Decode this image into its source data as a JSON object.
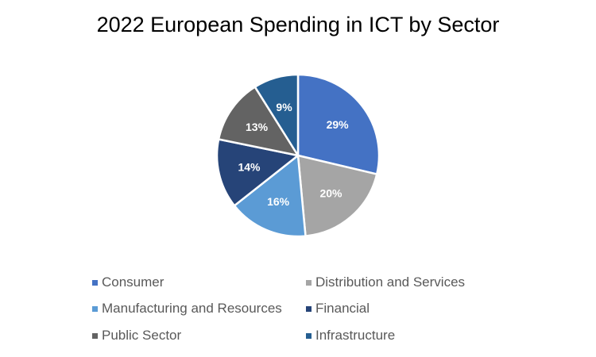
{
  "chart_data": {
    "type": "pie",
    "title": "2022 European Spending in ICT by Sector",
    "categories": [
      "Consumer",
      "Distribution and Services",
      "Manufacturing and Resources",
      "Financial",
      "Public Sector",
      "Infrastructure"
    ],
    "values": [
      29,
      20,
      16,
      14,
      13,
      9
    ],
    "data_labels": [
      "29%",
      "20%",
      "16%",
      "14%",
      "13%",
      "9%"
    ],
    "colors": [
      "#4472C4",
      "#A5A5A5",
      "#5B9BD5",
      "#264478",
      "#636363",
      "#255E91"
    ],
    "legend_position": "bottom",
    "legend_columns": 2
  }
}
